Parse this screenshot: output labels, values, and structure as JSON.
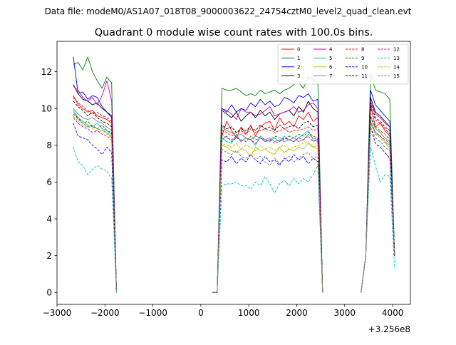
{
  "figure": {
    "suptitle": "Data file: modeM0/AS1A07_018T08_9000003622_24754cztM0_level2_quad_clean.evt"
  },
  "chart_data": {
    "type": "line",
    "title": "Quadrant 0 module wise count rates with 100.0s bins.",
    "xlabel": "",
    "ylabel": "",
    "x_offset_label": "+3.256e8",
    "xlim": [
      -3000,
      4370
    ],
    "ylim": [
      -0.65,
      13.65
    ],
    "xticks": [
      -3000,
      -2000,
      -1000,
      0,
      1000,
      2000,
      3000,
      4000
    ],
    "xtick_labels": [
      "−3000",
      "−2000",
      "−1000",
      "0",
      "1000",
      "2000",
      "3000",
      "4000"
    ],
    "yticks": [
      0,
      2,
      4,
      6,
      8,
      10,
      12
    ],
    "ytick_labels": [
      "0",
      "2",
      "4",
      "6",
      "8",
      "10",
      "12"
    ],
    "legend_position": "top-right",
    "legend_columns": 4,
    "segments": [
      {
        "start": -2660,
        "end": -1760,
        "step": 100
      },
      {
        "start": 240,
        "end": 2540,
        "step": 100
      },
      {
        "start": 3340,
        "end": 4040,
        "step": 100
      }
    ],
    "series": [
      {
        "name": "0",
        "color": "#ff0000",
        "dash": "solid",
        "seg1": [
          10.7,
          10.2,
          10.0,
          9.8,
          9.9,
          9.6,
          9.5,
          9.4,
          9.2,
          0.0
        ],
        "seg2": [
          0.0,
          0.0,
          8.5,
          9.3,
          8.8,
          8.4,
          9.0,
          8.6,
          9.1,
          8.5,
          9.0,
          9.2,
          9.3,
          8.8,
          9.5,
          9.1,
          9.3,
          9.0,
          9.6,
          9.4,
          9.8,
          9.3,
          9.5,
          0.0
        ],
        "seg3": [
          0.0,
          2.0,
          10.2,
          9.0,
          9.2,
          8.8,
          8.5,
          2.0
        ]
      },
      {
        "name": "1",
        "color": "#008000",
        "dash": "solid",
        "seg1": [
          12.4,
          12.5,
          12.1,
          12.8,
          12.0,
          11.5,
          11.1,
          11.7,
          11.4,
          0.0
        ],
        "seg2": [
          0.0,
          0.0,
          11.1,
          11.0,
          11.0,
          11.1,
          10.9,
          10.7,
          10.8,
          10.7,
          11.0,
          10.8,
          10.9,
          11.0,
          10.8,
          11.0,
          11.1,
          11.3,
          11.4,
          11.1,
          11.7,
          11.6,
          11.4,
          0.0
        ],
        "seg3": [
          0.0,
          2.0,
          11.9,
          11.0,
          10.9,
          10.8,
          10.5,
          2.0
        ]
      },
      {
        "name": "2",
        "color": "#0000ff",
        "dash": "solid",
        "seg1": [
          12.8,
          10.8,
          10.9,
          10.5,
          10.7,
          10.6,
          10.1,
          9.8,
          9.5,
          0.0
        ],
        "seg2": [
          0.0,
          0.0,
          10.0,
          9.8,
          10.2,
          9.8,
          10.0,
          9.9,
          10.3,
          10.1,
          10.5,
          10.2,
          10.4,
          10.1,
          10.2,
          10.6,
          10.5,
          10.3,
          10.7,
          10.6,
          10.8,
          10.4,
          10.5,
          0.0
        ],
        "seg3": [
          0.0,
          2.0,
          11.0,
          10.2,
          9.9,
          9.6,
          9.3,
          2.0
        ]
      },
      {
        "name": "3",
        "color": "#000000",
        "dash": "solid",
        "seg1": [
          11.3,
          10.8,
          10.5,
          10.4,
          10.2,
          10.3,
          10.0,
          9.8,
          9.6,
          0.0
        ],
        "seg2": [
          0.0,
          0.0,
          9.9,
          9.7,
          9.5,
          9.8,
          9.3,
          9.6,
          9.8,
          9.5,
          9.9,
          9.6,
          9.8,
          9.4,
          9.7,
          9.8,
          9.9,
          9.6,
          10.1,
          9.8,
          10.4,
          10.0,
          9.8,
          0.0
        ],
        "seg3": [
          0.0,
          2.0,
          10.6,
          9.8,
          9.6,
          9.3,
          9.0,
          2.0
        ]
      },
      {
        "name": "4",
        "color": "#bf00bf",
        "dash": "solid",
        "seg1": [
          11.2,
          11.0,
          10.6,
          10.4,
          10.6,
          10.2,
          10.7,
          11.5,
          10.4,
          0.0
        ],
        "seg2": [
          0.0,
          0.0,
          10.0,
          9.9,
          9.7,
          9.4,
          10.0,
          9.8,
          9.8,
          9.6,
          9.7,
          9.9,
          10.1,
          9.6,
          9.7,
          9.8,
          9.9,
          10.1,
          9.8,
          9.9,
          10.2,
          10.3,
          10.0,
          0.0
        ],
        "seg3": [
          0.0,
          2.0,
          10.4,
          9.7,
          9.5,
          9.2,
          9.0,
          2.0
        ]
      },
      {
        "name": "5",
        "color": "#00bfbf",
        "dash": "solid",
        "seg1": [
          9.9,
          9.5,
          9.3,
          9.1,
          9.0,
          9.2,
          8.9,
          8.8,
          8.6,
          0.0
        ],
        "seg2": [
          0.0,
          0.0,
          8.4,
          8.2,
          8.1,
          8.6,
          8.2,
          8.4,
          8.3,
          8.0,
          8.5,
          8.3,
          8.2,
          8.4,
          8.2,
          8.5,
          8.3,
          8.2,
          8.4,
          8.6,
          8.8,
          8.3,
          8.2,
          0.0
        ],
        "seg3": [
          0.0,
          2.0,
          9.3,
          8.7,
          8.5,
          8.2,
          8.0,
          2.0
        ]
      },
      {
        "name": "6",
        "color": "#bfbf00",
        "dash": "solid",
        "seg1": [
          9.8,
          9.4,
          9.2,
          9.0,
          9.1,
          8.9,
          8.8,
          8.7,
          8.4,
          0.0
        ],
        "seg2": [
          0.0,
          0.0,
          8.0,
          7.9,
          7.7,
          7.6,
          7.8,
          7.7,
          7.4,
          7.9,
          7.7,
          7.8,
          7.6,
          7.5,
          7.9,
          7.6,
          7.8,
          7.7,
          7.9,
          7.8,
          8.1,
          7.9,
          7.8,
          0.0
        ],
        "seg3": [
          0.0,
          2.0,
          9.2,
          8.6,
          8.5,
          8.2,
          7.8,
          2.0
        ]
      },
      {
        "name": "7",
        "color": "#808080",
        "dash": "solid",
        "seg1": [
          10.0,
          9.7,
          9.5,
          9.4,
          9.5,
          9.3,
          9.2,
          9.0,
          8.8,
          0.0
        ],
        "seg2": [
          0.0,
          0.0,
          9.0,
          8.8,
          8.7,
          8.5,
          8.6,
          8.4,
          8.3,
          8.5,
          8.4,
          8.3,
          8.4,
          8.2,
          8.3,
          8.2,
          8.3,
          8.4,
          8.2,
          8.3,
          8.6,
          8.4,
          8.3,
          0.0
        ],
        "seg3": [
          0.0,
          2.0,
          9.5,
          8.9,
          8.7,
          8.4,
          8.2,
          2.0
        ]
      },
      {
        "name": "8",
        "color": "#ff0000",
        "dash": "dashed",
        "seg1": [
          10.6,
          10.3,
          10.1,
          9.9,
          9.7,
          9.8,
          9.6,
          9.5,
          9.3,
          0.0
        ],
        "seg2": [
          0.0,
          0.0,
          8.8,
          8.7,
          8.5,
          8.7,
          8.8,
          8.6,
          8.9,
          8.7,
          8.8,
          8.9,
          8.8,
          8.7,
          8.8,
          8.9,
          8.7,
          8.8,
          8.8,
          8.9,
          9.0,
          8.8,
          8.9,
          0.0
        ],
        "seg3": [
          0.0,
          2.0,
          10.0,
          9.4,
          9.2,
          8.9,
          8.6,
          2.0
        ]
      },
      {
        "name": "9",
        "color": "#008000",
        "dash": "dashed",
        "seg1": [
          9.7,
          9.5,
          9.2,
          9.3,
          9.0,
          8.9,
          9.1,
          8.8,
          8.7,
          0.0
        ],
        "seg2": [
          0.0,
          0.0,
          8.3,
          8.5,
          8.2,
          8.4,
          8.3,
          8.2,
          8.5,
          8.3,
          8.4,
          8.2,
          8.3,
          8.5,
          8.4,
          8.3,
          8.5,
          8.4,
          8.6,
          8.5,
          8.7,
          8.5,
          8.4,
          0.0
        ],
        "seg3": [
          0.0,
          2.0,
          9.6,
          9.0,
          8.8,
          8.6,
          8.3,
          2.0
        ]
      },
      {
        "name": "10",
        "color": "#0000ff",
        "dash": "dashed",
        "seg1": [
          9.2,
          8.5,
          8.4,
          8.3,
          8.0,
          7.8,
          7.5,
          7.9,
          7.6,
          0.0
        ],
        "seg2": [
          0.0,
          0.0,
          7.2,
          7.1,
          7.4,
          7.0,
          7.3,
          7.1,
          7.5,
          7.2,
          7.0,
          7.4,
          7.1,
          7.2,
          6.9,
          7.3,
          7.1,
          7.5,
          7.2,
          7.4,
          7.0,
          7.3,
          7.1,
          0.0
        ],
        "seg3": [
          0.0,
          2.0,
          9.0,
          8.1,
          7.9,
          7.6,
          7.3,
          2.0
        ]
      },
      {
        "name": "11",
        "color": "#000000",
        "dash": "dashed",
        "seg1": [
          10.4,
          10.1,
          9.9,
          9.6,
          9.8,
          9.5,
          9.3,
          9.2,
          9.0,
          0.0
        ],
        "seg2": [
          0.0,
          0.0,
          9.1,
          8.9,
          9.0,
          8.7,
          8.9,
          8.8,
          9.0,
          8.8,
          9.1,
          8.9,
          9.0,
          8.8,
          9.1,
          8.9,
          9.0,
          9.1,
          8.9,
          9.2,
          9.3,
          9.0,
          9.1,
          0.0
        ],
        "seg3": [
          0.0,
          2.0,
          10.3,
          9.5,
          9.3,
          9.0,
          8.8,
          2.0
        ]
      },
      {
        "name": "12",
        "color": "#bf00bf",
        "dash": "dashed",
        "seg1": [
          9.5,
          9.2,
          9.0,
          8.9,
          8.7,
          8.8,
          8.6,
          8.5,
          8.3,
          0.0
        ],
        "seg2": [
          0.0,
          0.0,
          8.6,
          8.4,
          8.3,
          8.5,
          8.2,
          8.4,
          8.3,
          8.1,
          8.4,
          8.2,
          8.3,
          8.1,
          8.2,
          8.4,
          8.3,
          8.2,
          8.4,
          8.3,
          8.5,
          8.2,
          8.3,
          0.0
        ],
        "seg3": [
          0.0,
          2.0,
          9.3,
          8.7,
          8.5,
          8.3,
          8.1,
          2.0
        ]
      },
      {
        "name": "13",
        "color": "#00bfbf",
        "dash": "dashed",
        "seg1": [
          7.9,
          7.1,
          6.9,
          6.4,
          6.7,
          6.9,
          6.7,
          6.6,
          6.2,
          0.0
        ],
        "seg2": [
          0.0,
          0.0,
          5.8,
          5.9,
          5.9,
          6.0,
          5.8,
          5.8,
          5.6,
          6.0,
          5.8,
          6.3,
          5.9,
          5.4,
          5.9,
          6.1,
          5.8,
          6.2,
          5.9,
          6.2,
          6.0,
          6.4,
          6.9,
          0.0
        ],
        "seg3": [
          0.0,
          2.0,
          7.9,
          6.9,
          6.0,
          6.4,
          6.3,
          1.3
        ]
      },
      {
        "name": "14",
        "color": "#bfbf00",
        "dash": "dashed",
        "seg1": [
          9.6,
          9.3,
          9.1,
          9.0,
          8.9,
          8.8,
          8.7,
          8.6,
          8.4,
          0.0
        ],
        "seg2": [
          0.0,
          0.0,
          8.1,
          8.0,
          7.9,
          8.1,
          7.8,
          8.0,
          7.9,
          7.7,
          8.0,
          7.8,
          7.9,
          7.7,
          7.9,
          8.0,
          7.8,
          7.9,
          8.0,
          8.1,
          8.2,
          7.9,
          8.0,
          0.0
        ],
        "seg3": [
          0.0,
          2.0,
          9.2,
          8.6,
          8.4,
          8.1,
          7.9,
          2.0
        ]
      },
      {
        "name": "15",
        "color": "#808080",
        "dash": "dashed",
        "seg1": [
          9.7,
          9.4,
          9.2,
          9.0,
          9.1,
          8.9,
          8.8,
          8.7,
          8.5,
          0.0
        ],
        "seg2": [
          0.0,
          0.0,
          7.8,
          7.6,
          7.5,
          7.7,
          7.4,
          7.3,
          7.5,
          7.2,
          7.4,
          7.1,
          6.9,
          7.3,
          7.0,
          7.2,
          7.4,
          7.1,
          7.3,
          7.5,
          7.6,
          7.3,
          7.4,
          0.0
        ],
        "seg3": [
          0.0,
          2.0,
          9.0,
          8.4,
          8.2,
          7.9,
          7.7,
          2.0
        ]
      }
    ]
  }
}
